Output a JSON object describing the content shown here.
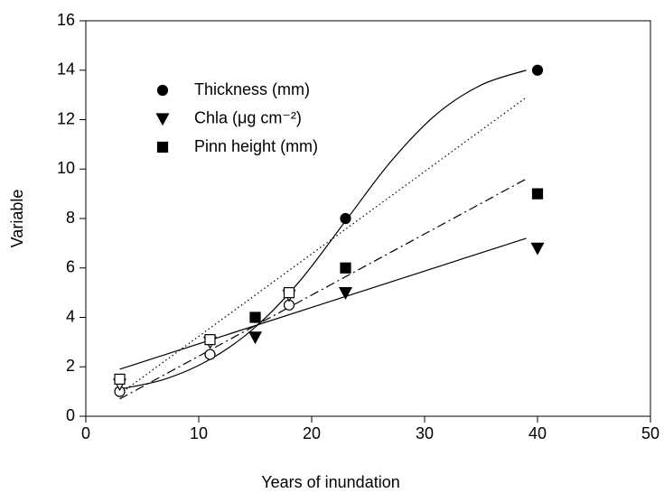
{
  "chart_data": {
    "type": "scatter",
    "xlabel": "Years of inundation",
    "ylabel": "Variable",
    "xlim": [
      0,
      50
    ],
    "ylim": [
      0,
      16
    ],
    "xticks": [
      0,
      10,
      20,
      30,
      40,
      50
    ],
    "yticks": [
      0,
      2,
      4,
      6,
      8,
      10,
      12,
      14,
      16
    ],
    "color": "#000000",
    "legend": "upper left",
    "series": [
      {
        "name": "Thickness (mm)",
        "marker": "circle",
        "x": [
          3,
          11,
          15,
          18,
          23,
          40
        ],
        "values": [
          1.0,
          2.5,
          4.0,
          4.5,
          8.0,
          14.0
        ],
        "hollow": [
          true,
          true,
          false,
          true,
          false,
          false
        ]
      },
      {
        "name": "Chla (μg cm⁻²)",
        "marker": "triangle-down",
        "x": [
          3,
          11,
          15,
          18,
          23,
          40
        ],
        "values": [
          1.3,
          3.0,
          3.2,
          4.9,
          5.0,
          6.8
        ],
        "hollow": [
          true,
          true,
          false,
          true,
          false,
          false
        ]
      },
      {
        "name": "Pinn height (mm)",
        "marker": "square",
        "x": [
          3,
          11,
          15,
          18,
          23,
          40
        ],
        "values": [
          1.5,
          3.1,
          4.0,
          5.0,
          6.0,
          9.0
        ],
        "hollow": [
          true,
          true,
          false,
          true,
          false,
          false
        ]
      }
    ],
    "fits": [
      {
        "style": "solid",
        "x": [
          3,
          7,
          11,
          15,
          19,
          23,
          27,
          31,
          35,
          39
        ],
        "values": [
          1.1,
          1.5,
          2.3,
          3.6,
          5.5,
          7.9,
          10.3,
          12.2,
          13.4,
          14.0
        ]
      },
      {
        "style": "dotted",
        "x": [
          3,
          39
        ],
        "values": [
          0.9,
          12.9
        ]
      },
      {
        "style": "solid",
        "x": [
          3,
          39
        ],
        "values": [
          1.9,
          7.2
        ]
      },
      {
        "style": "dash-dot",
        "x": [
          3,
          39
        ],
        "values": [
          0.7,
          9.6
        ]
      }
    ]
  }
}
